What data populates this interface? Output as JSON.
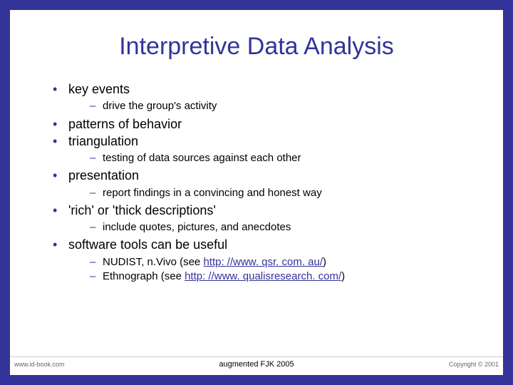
{
  "border_color": "#333399",
  "title": "Interpretive Data Analysis",
  "title_color": "#333399",
  "bullets": [
    {
      "text": "key events",
      "sub": [
        "drive the group's activity"
      ]
    },
    {
      "text": "patterns of behavior",
      "sub": []
    },
    {
      "text": "triangulation",
      "sub": [
        "testing of data sources against each other"
      ]
    },
    {
      "text": "presentation",
      "sub": [
        "report findings in a convincing and honest way"
      ]
    },
    {
      "text": "'rich' or 'thick descriptions'",
      "sub": [
        "include quotes, pictures, and anecdotes"
      ]
    },
    {
      "text": "software tools can be useful",
      "sub": [
        {
          "pre": "NUDIST, n.Vivo (see ",
          "link": "http: //www. qsr. com. au/",
          "post": ")"
        },
        {
          "pre": "Ethnograph (see ",
          "link": "http: //www. qualisresearch. com/",
          "post": ")"
        }
      ]
    }
  ],
  "footer": {
    "left": "www.id-book.com",
    "center": "augmented FJK 2005",
    "right": "Copyright © 2001"
  }
}
